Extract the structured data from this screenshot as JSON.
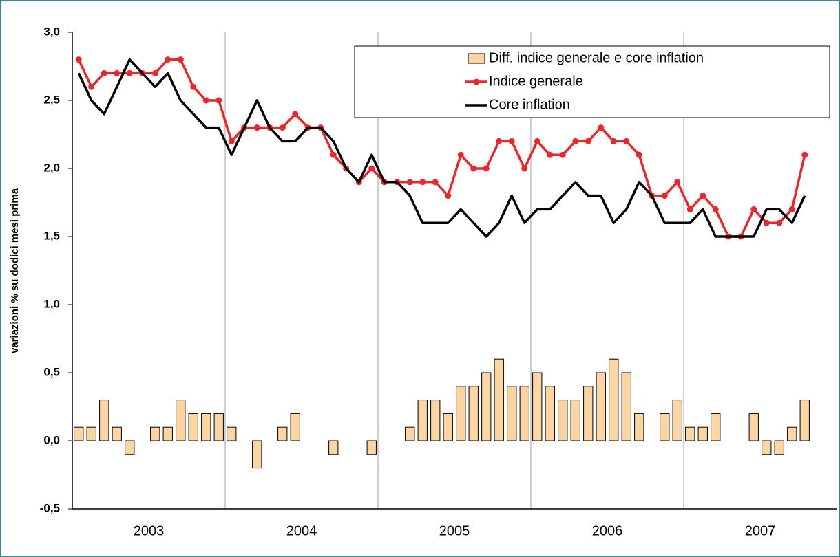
{
  "chart_data": {
    "type": "bar-line",
    "y_label": "variazioni % su dodici mesi prima",
    "categories": [
      null,
      null,
      null,
      null,
      null,
      null,
      null,
      null,
      null,
      null,
      null,
      null,
      null,
      null,
      null,
      null,
      null,
      null,
      null,
      null,
      null,
      null,
      null,
      null,
      null,
      null,
      null,
      null,
      null,
      null,
      null,
      null,
      null,
      null,
      null,
      null,
      null,
      null,
      null,
      null,
      null,
      null,
      null,
      null,
      null,
      null,
      null,
      null,
      null,
      null,
      null,
      null,
      null,
      null,
      null,
      null,
      null,
      null
    ],
    "x_groups": [
      "2003",
      "2004",
      "2005",
      "2006",
      "2007"
    ],
    "ylim": [
      -0.5,
      3.0
    ],
    "yticks": [
      {
        "value": -0.5,
        "label": "-0,5"
      },
      {
        "value": 0,
        "label": "0,0"
      },
      {
        "value": 0.5,
        "label": "0,5"
      },
      {
        "value": 1.0,
        "label": "1,0"
      },
      {
        "value": 1.5,
        "label": "1,5"
      },
      {
        "value": 2.0,
        "label": "2,0"
      },
      {
        "value": 2.5,
        "label": "2,5"
      },
      {
        "value": 3.0,
        "label": "3,0"
      }
    ],
    "legend": "top-right",
    "series": [
      {
        "name": "Diff. indice generale e core inflation",
        "type": "bar",
        "color": "#fcd5a5",
        "values": [
          0.1,
          0.1,
          0.3,
          0.1,
          -0.1,
          0,
          0.1,
          0.1,
          0.3,
          0.2,
          0.2,
          0.2,
          0.1,
          0,
          -0.2,
          0,
          0.1,
          0.2,
          0,
          0,
          -0.1,
          0,
          0,
          -0.1,
          0,
          0,
          0.1,
          0.3,
          0.3,
          0.2,
          0.4,
          0.4,
          0.5,
          0.6,
          0.4,
          0.4,
          0.5,
          0.4,
          0.3,
          0.3,
          0.4,
          0.5,
          0.6,
          0.5,
          0.2,
          0,
          0.2,
          0.3,
          0.1,
          0.1,
          0.2,
          0,
          0,
          0.2,
          -0.1,
          -0.1,
          0.1,
          0.3
        ]
      },
      {
        "name": "Indice generale",
        "type": "line",
        "markers": true,
        "color": "#e8282b",
        "values": [
          2.8,
          2.6,
          2.7,
          2.7,
          2.7,
          2.7,
          2.7,
          2.8,
          2.8,
          2.6,
          2.5,
          2.5,
          2.2,
          2.3,
          2.3,
          2.3,
          2.3,
          2.4,
          2.3,
          2.3,
          2.1,
          2.0,
          1.9,
          2.0,
          1.9,
          1.9,
          1.9,
          1.9,
          1.9,
          1.8,
          2.1,
          2.0,
          2.0,
          2.2,
          2.2,
          2.0,
          2.2,
          2.1,
          2.1,
          2.2,
          2.2,
          2.3,
          2.2,
          2.2,
          2.1,
          1.8,
          1.8,
          1.9,
          1.7,
          1.8,
          1.7,
          1.5,
          1.5,
          1.7,
          1.6,
          1.6,
          1.7,
          2.1
        ]
      },
      {
        "name": "Core inflation",
        "type": "line",
        "markers": false,
        "color": "#000000",
        "values": [
          2.7,
          2.5,
          2.4,
          2.6,
          2.8,
          2.7,
          2.6,
          2.7,
          2.5,
          2.4,
          2.3,
          2.3,
          2.1,
          2.3,
          2.5,
          2.3,
          2.2,
          2.2,
          2.3,
          2.3,
          2.2,
          2.0,
          1.9,
          2.1,
          1.9,
          1.9,
          1.8,
          1.6,
          1.6,
          1.6,
          1.7,
          1.6,
          1.5,
          1.6,
          1.8,
          1.6,
          1.7,
          1.7,
          1.8,
          1.9,
          1.8,
          1.8,
          1.6,
          1.7,
          1.9,
          1.8,
          1.6,
          1.6,
          1.6,
          1.7,
          1.5,
          1.5,
          1.5,
          1.5,
          1.7,
          1.7,
          1.6,
          1.8
        ]
      }
    ]
  }
}
